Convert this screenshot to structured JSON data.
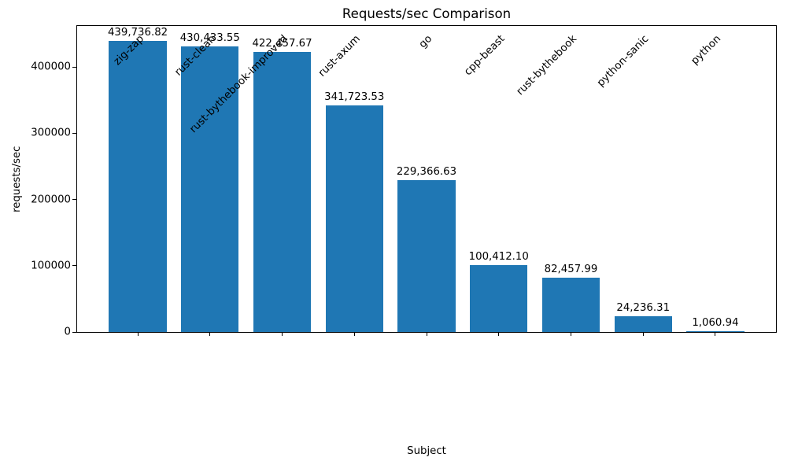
{
  "chart_data": {
    "type": "bar",
    "title": "Requests/sec Comparison",
    "xlabel": "Subject",
    "ylabel": "requests/sec",
    "categories": [
      "zig-zap",
      "rust-clean",
      "rust-bythebook-improved",
      "rust-axum",
      "go",
      "cpp-beast",
      "rust-bythebook",
      "python-sanic",
      "python"
    ],
    "values": [
      439736.82,
      430433.55,
      422457.67,
      341723.53,
      229366.63,
      100412.1,
      82457.99,
      24236.31,
      1060.94
    ],
    "value_labels": [
      "439,736.82",
      "430,433.55",
      "422,457.67",
      "341,723.53",
      "229,366.63",
      "100,412.10",
      "82,457.99",
      "24,236.31",
      "1,060.94"
    ],
    "yticks": [
      {
        "value": 0,
        "label": "0"
      },
      {
        "value": 100000,
        "label": "100000"
      },
      {
        "value": 200000,
        "label": "200000"
      },
      {
        "value": 300000,
        "label": "300000"
      },
      {
        "value": 400000,
        "label": "400000"
      }
    ],
    "ylim": [
      0,
      461723.66
    ],
    "xlim": [
      -0.84,
      8.84
    ],
    "bar_width_units": 0.8,
    "x_tick_rotation_deg": 45,
    "grid": false,
    "legend": "none",
    "bar_color": "#1f77b4",
    "spine_color": "#000000",
    "text_color": "#000000",
    "background_color": "#ffffff"
  }
}
